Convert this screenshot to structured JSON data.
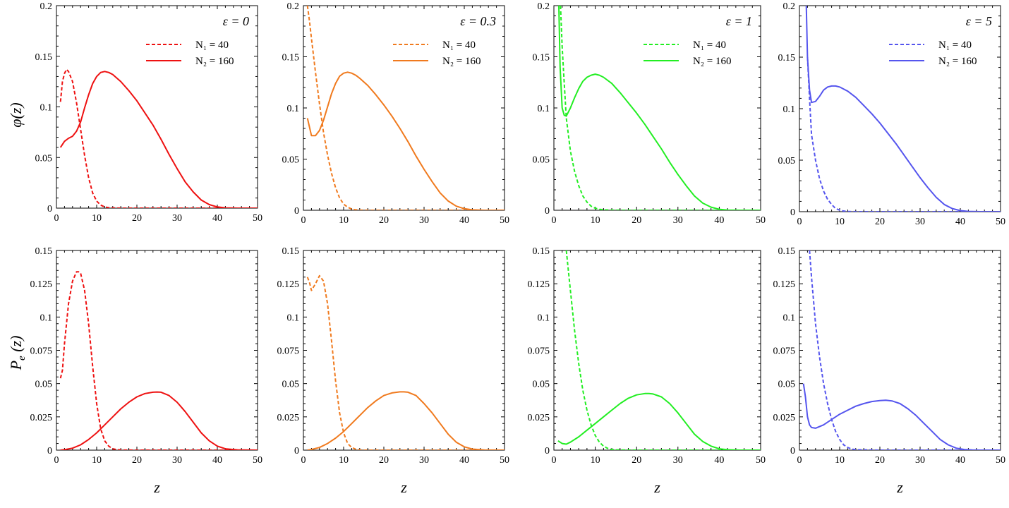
{
  "figure": {
    "xlabel": "z"
  },
  "rows": [
    {
      "ylabel": "φ(z)",
      "ylabel_main": "φ(z)"
    },
    {
      "ylabel": "P_e (z)",
      "ylabel_main": "P",
      "ylabel_sub": "e",
      "ylabel_tail": " (z)"
    }
  ],
  "legend": {
    "series1": "N₁ = 40",
    "series2": "N₂ = 160"
  },
  "colors": {
    "eps0": "#ee1111",
    "eps03": "#f07a1e",
    "eps1": "#22ee22",
    "eps5": "#5555ee"
  },
  "chart_data": [
    {
      "type": "line",
      "panel": "phi-eps0",
      "title": "ε = 0",
      "color": "#ee1111",
      "xlabel": "",
      "ylabel": "φ(z)",
      "xlim": [
        0,
        50
      ],
      "ylim": [
        0,
        0.2
      ],
      "xticks": [
        "0",
        "10",
        "20",
        "30",
        "40",
        "50"
      ],
      "yticks": [
        "0",
        "0.05",
        "0.1",
        "0.15",
        "0.2"
      ],
      "series": [
        {
          "name": "N₁ = 40",
          "style": "dashed",
          "x": [
            1,
            1.5,
            2,
            2.5,
            3,
            4,
            5,
            6,
            7,
            8,
            9,
            10,
            11,
            12,
            13,
            14,
            16,
            20,
            30,
            50
          ],
          "y": [
            0.105,
            0.125,
            0.133,
            0.137,
            0.135,
            0.125,
            0.104,
            0.078,
            0.052,
            0.03,
            0.015,
            0.007,
            0.003,
            0.0012,
            0.0005,
            0.0002,
            0,
            0,
            0,
            0
          ]
        },
        {
          "name": "N₂ = 160",
          "style": "solid",
          "x": [
            1,
            2,
            3,
            4,
            5,
            6,
            7,
            8,
            9,
            10,
            11,
            12,
            13,
            14,
            16,
            18,
            20,
            22,
            24,
            26,
            28,
            30,
            32,
            34,
            36,
            38,
            40,
            42,
            45,
            50
          ],
          "y": [
            0.06,
            0.066,
            0.069,
            0.071,
            0.076,
            0.085,
            0.099,
            0.112,
            0.123,
            0.13,
            0.134,
            0.135,
            0.134,
            0.132,
            0.125,
            0.116,
            0.106,
            0.094,
            0.082,
            0.068,
            0.053,
            0.039,
            0.026,
            0.016,
            0.008,
            0.0035,
            0.0012,
            0.0003,
            0,
            0
          ]
        }
      ]
    },
    {
      "type": "line",
      "panel": "phi-eps03",
      "title": "ε = 0.3",
      "color": "#f07a1e",
      "xlabel": "",
      "ylabel": "",
      "xlim": [
        0,
        50
      ],
      "ylim": [
        0,
        0.2
      ],
      "xticks": [
        "0",
        "10",
        "20",
        "30",
        "40",
        "50"
      ],
      "yticks": [
        "0",
        "0.05",
        "0.1",
        "0.15",
        "0.2"
      ],
      "series": [
        {
          "name": "N₁ = 40",
          "style": "dashed",
          "x": [
            1,
            1.5,
            2,
            3,
            4,
            5,
            6,
            7,
            8,
            9,
            10,
            11,
            12,
            13,
            14,
            15,
            16,
            20,
            30,
            50
          ],
          "y": [
            0.2,
            0.185,
            0.168,
            0.135,
            0.104,
            0.076,
            0.054,
            0.036,
            0.022,
            0.012,
            0.006,
            0.003,
            0.0012,
            0.0005,
            0.0002,
            8e-05,
            0,
            0,
            0,
            0
          ]
        },
        {
          "name": "N₂ = 160",
          "style": "solid",
          "x": [
            1,
            2,
            3,
            4,
            5,
            6,
            7,
            8,
            9,
            10,
            11,
            12,
            13,
            14,
            16,
            18,
            20,
            22,
            24,
            26,
            28,
            30,
            32,
            34,
            36,
            38,
            40,
            42,
            45,
            50
          ],
          "y": [
            0.09,
            0.073,
            0.073,
            0.078,
            0.088,
            0.101,
            0.114,
            0.124,
            0.131,
            0.134,
            0.135,
            0.134,
            0.132,
            0.129,
            0.122,
            0.113,
            0.103,
            0.092,
            0.08,
            0.067,
            0.053,
            0.04,
            0.028,
            0.017,
            0.009,
            0.004,
            0.0015,
            0.0004,
            0,
            0
          ]
        }
      ]
    },
    {
      "type": "line",
      "panel": "phi-eps1",
      "title": "ε = 1",
      "color": "#22ee22",
      "xlabel": "",
      "ylabel": "",
      "xlim": [
        0,
        50
      ],
      "ylim": [
        0,
        0.2
      ],
      "xticks": [
        "0",
        "10",
        "20",
        "30",
        "40",
        "50"
      ],
      "yticks": [
        "0",
        "0.05",
        "0.1",
        "0.15",
        "0.2"
      ],
      "series": [
        {
          "name": "N₁ = 40",
          "style": "dashed",
          "x": [
            1.6,
            2,
            2.5,
            3,
            4,
            5,
            6,
            7,
            8,
            9,
            10,
            11,
            12,
            14,
            20,
            30,
            50
          ],
          "y": [
            0.2,
            0.16,
            0.125,
            0.09,
            0.058,
            0.038,
            0.024,
            0.014,
            0.008,
            0.004,
            0.002,
            0.001,
            0.0005,
            0.0001,
            0,
            0,
            0
          ]
        },
        {
          "name": "N₂ = 160",
          "style": "solid",
          "x": [
            1.2,
            1.5,
            2,
            2.5,
            3,
            4,
            5,
            6,
            7,
            8,
            9,
            10,
            11,
            12,
            14,
            16,
            18,
            20,
            22,
            24,
            26,
            28,
            30,
            32,
            34,
            36,
            38,
            40,
            42,
            45,
            50
          ],
          "y": [
            0.2,
            0.14,
            0.1,
            0.093,
            0.092,
            0.1,
            0.11,
            0.119,
            0.126,
            0.13,
            0.132,
            0.133,
            0.132,
            0.13,
            0.124,
            0.115,
            0.105,
            0.095,
            0.084,
            0.072,
            0.06,
            0.047,
            0.035,
            0.024,
            0.014,
            0.007,
            0.003,
            0.001,
            0.0002,
            0,
            0
          ]
        }
      ]
    },
    {
      "type": "line",
      "panel": "phi-eps5",
      "title": "ε = 5",
      "color": "#5555ee",
      "xlabel": "",
      "ylabel": "",
      "xlim": [
        0,
        50
      ],
      "ylim": [
        0,
        0.2
      ],
      "xticks": [
        "0",
        "10",
        "20",
        "30",
        "40",
        "50"
      ],
      "yticks": [
        "0",
        "0.05",
        "0.1",
        "0.15",
        "0.2"
      ],
      "series": [
        {
          "name": "N₁ = 40",
          "style": "dashed",
          "x": [
            2,
            2.5,
            3,
            4,
            5,
            6,
            7,
            8,
            9,
            10,
            11,
            12,
            14,
            20,
            30,
            50
          ],
          "y": [
            0.15,
            0.11,
            0.075,
            0.05,
            0.032,
            0.02,
            0.012,
            0.007,
            0.003,
            0.0015,
            0.0006,
            0.0002,
            0,
            0,
            0,
            0
          ]
        },
        {
          "name": "N₂ = 160",
          "style": "solid",
          "x": [
            1.7,
            2,
            2.5,
            3,
            4,
            5,
            6,
            7,
            8,
            9,
            10,
            11,
            12,
            14,
            16,
            18,
            20,
            22,
            24,
            26,
            28,
            30,
            32,
            34,
            36,
            38,
            40,
            42,
            45,
            50
          ],
          "y": [
            0.2,
            0.15,
            0.118,
            0.106,
            0.107,
            0.112,
            0.118,
            0.121,
            0.122,
            0.122,
            0.121,
            0.119,
            0.117,
            0.111,
            0.103,
            0.095,
            0.086,
            0.076,
            0.066,
            0.055,
            0.044,
            0.033,
            0.023,
            0.014,
            0.007,
            0.003,
            0.001,
            0.0003,
            0,
            0
          ]
        }
      ]
    },
    {
      "type": "line",
      "panel": "pe-eps0",
      "title": "",
      "color": "#ee1111",
      "xlabel": "z",
      "ylabel": "P_e (z)",
      "xlim": [
        0,
        50
      ],
      "ylim": [
        0,
        0.15
      ],
      "xticks": [
        "0",
        "10",
        "20",
        "30",
        "40",
        "50"
      ],
      "yticks": [
        "0",
        "0.025",
        "0.05",
        "0.075",
        "0.1",
        "0.125",
        "0.15"
      ],
      "series": [
        {
          "name": "N₁ = 40",
          "style": "dashed",
          "x": [
            1,
            1.5,
            2,
            3,
            4,
            5,
            5.5,
            6,
            7,
            8,
            9,
            10,
            11,
            12,
            13,
            14,
            15,
            16,
            20,
            30,
            50
          ],
          "y": [
            0.054,
            0.06,
            0.08,
            0.11,
            0.127,
            0.134,
            0.134,
            0.133,
            0.12,
            0.095,
            0.063,
            0.035,
            0.016,
            0.007,
            0.003,
            0.001,
            0.0004,
            0.0001,
            0,
            0,
            0
          ]
        },
        {
          "name": "N₂ = 160",
          "style": "solid",
          "x": [
            1,
            2,
            4,
            6,
            8,
            10,
            12,
            14,
            16,
            18,
            20,
            22,
            24,
            25,
            26,
            28,
            30,
            32,
            34,
            36,
            38,
            40,
            42,
            45,
            50
          ],
          "y": [
            0,
            0.0003,
            0.0015,
            0.004,
            0.008,
            0.013,
            0.019,
            0.025,
            0.031,
            0.036,
            0.04,
            0.0425,
            0.0435,
            0.0437,
            0.0435,
            0.041,
            0.036,
            0.029,
            0.021,
            0.013,
            0.007,
            0.003,
            0.001,
            0.0002,
            0
          ]
        }
      ]
    },
    {
      "type": "line",
      "panel": "pe-eps03",
      "title": "",
      "color": "#f07a1e",
      "xlabel": "z",
      "ylabel": "",
      "xlim": [
        0,
        50
      ],
      "ylim": [
        0,
        0.15
      ],
      "xticks": [
        "0",
        "10",
        "20",
        "30",
        "40",
        "50"
      ],
      "yticks": [
        "0",
        "0.025",
        "0.05",
        "0.075",
        "0.1",
        "0.125",
        "0.15"
      ],
      "series": [
        {
          "name": "N₁ = 40",
          "style": "dashed",
          "x": [
            1,
            1.5,
            2,
            3,
            4,
            5,
            6,
            7,
            8,
            9,
            10,
            11,
            12,
            13,
            14,
            15,
            20,
            30,
            50
          ],
          "y": [
            0.13,
            0.126,
            0.12,
            0.125,
            0.131,
            0.127,
            0.11,
            0.082,
            0.052,
            0.028,
            0.013,
            0.005,
            0.002,
            0.0007,
            0.0002,
            0,
            0,
            0,
            0
          ]
        },
        {
          "name": "N₂ = 160",
          "style": "solid",
          "x": [
            1,
            2,
            4,
            6,
            8,
            10,
            12,
            14,
            16,
            18,
            20,
            22,
            24,
            25,
            26,
            28,
            30,
            32,
            34,
            36,
            38,
            40,
            42,
            45,
            50
          ],
          "y": [
            0,
            0.0005,
            0.002,
            0.005,
            0.009,
            0.014,
            0.02,
            0.026,
            0.032,
            0.037,
            0.041,
            0.043,
            0.0438,
            0.0438,
            0.0435,
            0.041,
            0.035,
            0.028,
            0.02,
            0.012,
            0.006,
            0.0025,
            0.0008,
            0.0001,
            0
          ]
        }
      ]
    },
    {
      "type": "line",
      "panel": "pe-eps1",
      "title": "",
      "color": "#22ee22",
      "xlabel": "z",
      "ylabel": "",
      "xlim": [
        0,
        50
      ],
      "ylim": [
        0,
        0.15
      ],
      "xticks": [
        "0",
        "10",
        "20",
        "30",
        "40",
        "50"
      ],
      "yticks": [
        "0",
        "0.025",
        "0.05",
        "0.075",
        "0.1",
        "0.125",
        "0.15"
      ],
      "series": [
        {
          "name": "N₁ = 40",
          "style": "dashed",
          "x": [
            3,
            4,
            5,
            6,
            7,
            8,
            9,
            10,
            11,
            12,
            13,
            14,
            15,
            20,
            30,
            50
          ],
          "y": [
            0.15,
            0.12,
            0.09,
            0.065,
            0.045,
            0.03,
            0.019,
            0.011,
            0.006,
            0.003,
            0.0013,
            0.0005,
            0.0002,
            0,
            0,
            0
          ]
        },
        {
          "name": "N₂ = 160",
          "style": "solid",
          "x": [
            1,
            2,
            3,
            4,
            6,
            8,
            10,
            12,
            14,
            16,
            18,
            20,
            22,
            23,
            24,
            26,
            28,
            30,
            32,
            34,
            36,
            38,
            40,
            42,
            45,
            50
          ],
          "y": [
            0.007,
            0.005,
            0.0045,
            0.006,
            0.01,
            0.015,
            0.02,
            0.025,
            0.03,
            0.035,
            0.039,
            0.0415,
            0.0425,
            0.0425,
            0.0422,
            0.04,
            0.035,
            0.028,
            0.02,
            0.012,
            0.0065,
            0.003,
            0.001,
            0.0003,
            0,
            0
          ]
        }
      ]
    },
    {
      "type": "line",
      "panel": "pe-eps5",
      "title": "",
      "color": "#5555ee",
      "xlabel": "z",
      "ylabel": "",
      "xlim": [
        0,
        50
      ],
      "ylim": [
        0,
        0.15
      ],
      "xticks": [
        "0",
        "10",
        "20",
        "30",
        "40",
        "50"
      ],
      "yticks": [
        "0",
        "0.025",
        "0.05",
        "0.075",
        "0.1",
        "0.125",
        "0.15"
      ],
      "series": [
        {
          "name": "N₁ = 40",
          "style": "dashed",
          "x": [
            2.5,
            3,
            4,
            5,
            6,
            7,
            8,
            9,
            10,
            11,
            12,
            13,
            14,
            20,
            30,
            50
          ],
          "y": [
            0.15,
            0.13,
            0.095,
            0.07,
            0.05,
            0.035,
            0.023,
            0.014,
            0.008,
            0.004,
            0.002,
            0.0008,
            0.0003,
            0,
            0,
            0
          ]
        },
        {
          "name": "N₂ = 160",
          "style": "solid",
          "x": [
            1,
            1.5,
            2,
            2.5,
            3,
            4,
            6,
            8,
            10,
            12,
            14,
            16,
            18,
            20,
            21.5,
            23,
            25,
            27,
            29,
            31,
            33,
            35,
            37,
            39,
            41,
            43,
            45,
            50
          ],
          "y": [
            0.05,
            0.04,
            0.025,
            0.019,
            0.017,
            0.0165,
            0.019,
            0.023,
            0.027,
            0.03,
            0.033,
            0.035,
            0.0365,
            0.0372,
            0.0375,
            0.037,
            0.035,
            0.031,
            0.026,
            0.02,
            0.014,
            0.008,
            0.004,
            0.0015,
            0.0005,
            0.0001,
            0,
            0
          ]
        }
      ]
    }
  ]
}
